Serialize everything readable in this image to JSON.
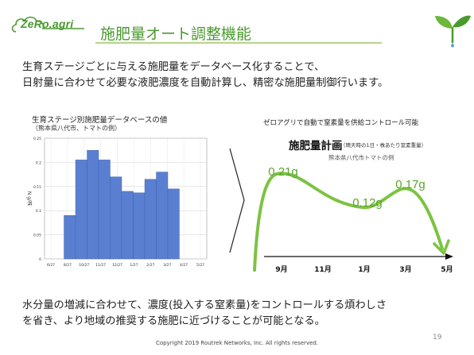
{
  "header": {
    "logo_text": "ZeRo.agri",
    "title": "施肥量オート調整機能"
  },
  "intro": {
    "line1": "生育ステージごとに与える施肥量をデータベース化することで、",
    "line2": "日射量に合わせて必要な液肥濃度を自動計算し、精密な施肥量制御行います。"
  },
  "chart": {
    "title": "生育ステージ別施肥量データベースの値",
    "subtitle": "（熊本県八代市、トマトの例）"
  },
  "chart_data": [
    {
      "type": "bar",
      "title": "生育ステージ別施肥量データベースの値",
      "subtitle": "（熊本県八代市、トマトの例）",
      "ylabel": "N g/株",
      "xlabel": "",
      "ylim": [
        0,
        0.25
      ],
      "yticks": [
        "0",
        "0.05",
        "0.1",
        "0.15",
        "0.2",
        "0.25"
      ],
      "xticks": [
        "6/27",
        "8/27",
        "10/27",
        "11/27",
        "12/27",
        "1/27",
        "2/27",
        "3/27",
        "4/27",
        "5/27"
      ],
      "grid": true,
      "x": [
        "6/27",
        "7/27",
        "8/27",
        "9/27",
        "10/27",
        "11/27",
        "12/27",
        "1/27",
        "2/27",
        "3/27",
        "4/27",
        "5/27"
      ],
      "values": [
        0.0,
        0.09,
        0.205,
        0.225,
        0.205,
        0.17,
        0.14,
        0.137,
        0.165,
        0.18,
        0.145,
        0.0
      ]
    },
    {
      "type": "line",
      "title": "施肥量計画",
      "subtitle": "熊本県八代市トマトの例",
      "note": "（晴天時の1日・株あたり窒素重量）",
      "categories": [
        "9月",
        "11月",
        "1月",
        "3月",
        "5月"
      ],
      "annotations": [
        "0.21g",
        "0.12g",
        "0.17g"
      ],
      "values": [
        0.21,
        0.16,
        0.12,
        0.17,
        0.0
      ]
    }
  ],
  "plan": {
    "caption": "ゼロアグリで自動で窒素量を供給コントロール可能",
    "title": "施肥量計画",
    "note": "（晴天時の1日・株あたり窒素重量）",
    "subtitle": "熊本県八代市トマトの例"
  },
  "outro": {
    "line1": "水分量の増減に合わせて、濃度(投入する窒素量)をコントロールする煩わしさ",
    "line2": "を省き、より地域の推奨する施肥に近づけることが可能となる。"
  },
  "footer": {
    "copyright": "Copyright 2019 Routrek Networks, Inc. All rights reserved.",
    "page": "19"
  },
  "colors": {
    "accent_green": "#4a9a2e",
    "curve_green": "#7cc341",
    "bar_blue": "#5b7fd0"
  }
}
